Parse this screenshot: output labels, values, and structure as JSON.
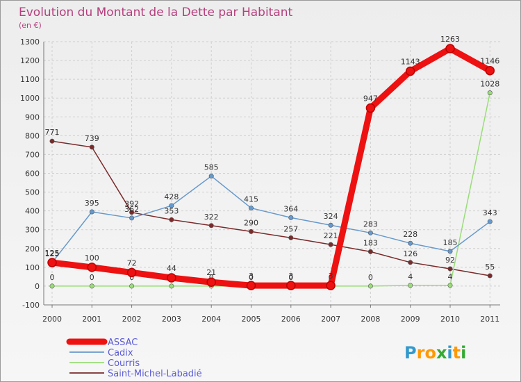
{
  "chart_data": {
    "type": "line",
    "title": "Evolution du Montant de la Dette par Habitant",
    "subtitle": "(en €)",
    "x": [
      "2000",
      "2001",
      "2002",
      "2003",
      "2004",
      "2005",
      "2006",
      "2007",
      "2008",
      "2009",
      "2010",
      "2011"
    ],
    "ylim": [
      -100,
      1300
    ],
    "yticks": [
      -100,
      0,
      100,
      200,
      300,
      400,
      500,
      600,
      700,
      800,
      900,
      1000,
      1100,
      1200,
      1300
    ],
    "grid": true,
    "legend_position": "bottom-left",
    "series": [
      {
        "name": "Saint-Michel-Labadié",
        "color": "#7a2a2a",
        "values": [
          771,
          739,
          392,
          353,
          322,
          290,
          257,
          221,
          183,
          126,
          92,
          55
        ]
      },
      {
        "name": "Courris",
        "color": "#99dd77",
        "values": [
          0,
          0,
          0,
          0,
          0,
          0,
          0,
          0,
          0,
          4,
          4,
          1028
        ]
      },
      {
        "name": "Cadix",
        "color": "#6699cc",
        "values": [
          125,
          395,
          362,
          428,
          585,
          415,
          364,
          324,
          283,
          228,
          185,
          343
        ]
      },
      {
        "name": "ASSAC",
        "color": "#ee1111",
        "values": [
          125,
          100,
          72,
          44,
          21,
          3,
          3,
          3,
          947,
          1143,
          1263,
          1146
        ]
      }
    ]
  },
  "brand": {
    "name": "Proxiti",
    "letters": [
      "P",
      "r",
      "o",
      "x",
      "i",
      "t",
      "i"
    ],
    "colors": [
      "#3399cc",
      "#ff9900",
      "#ff9900",
      "#33aa33",
      "#3399cc",
      "#ff9900",
      "#33aa33"
    ]
  }
}
